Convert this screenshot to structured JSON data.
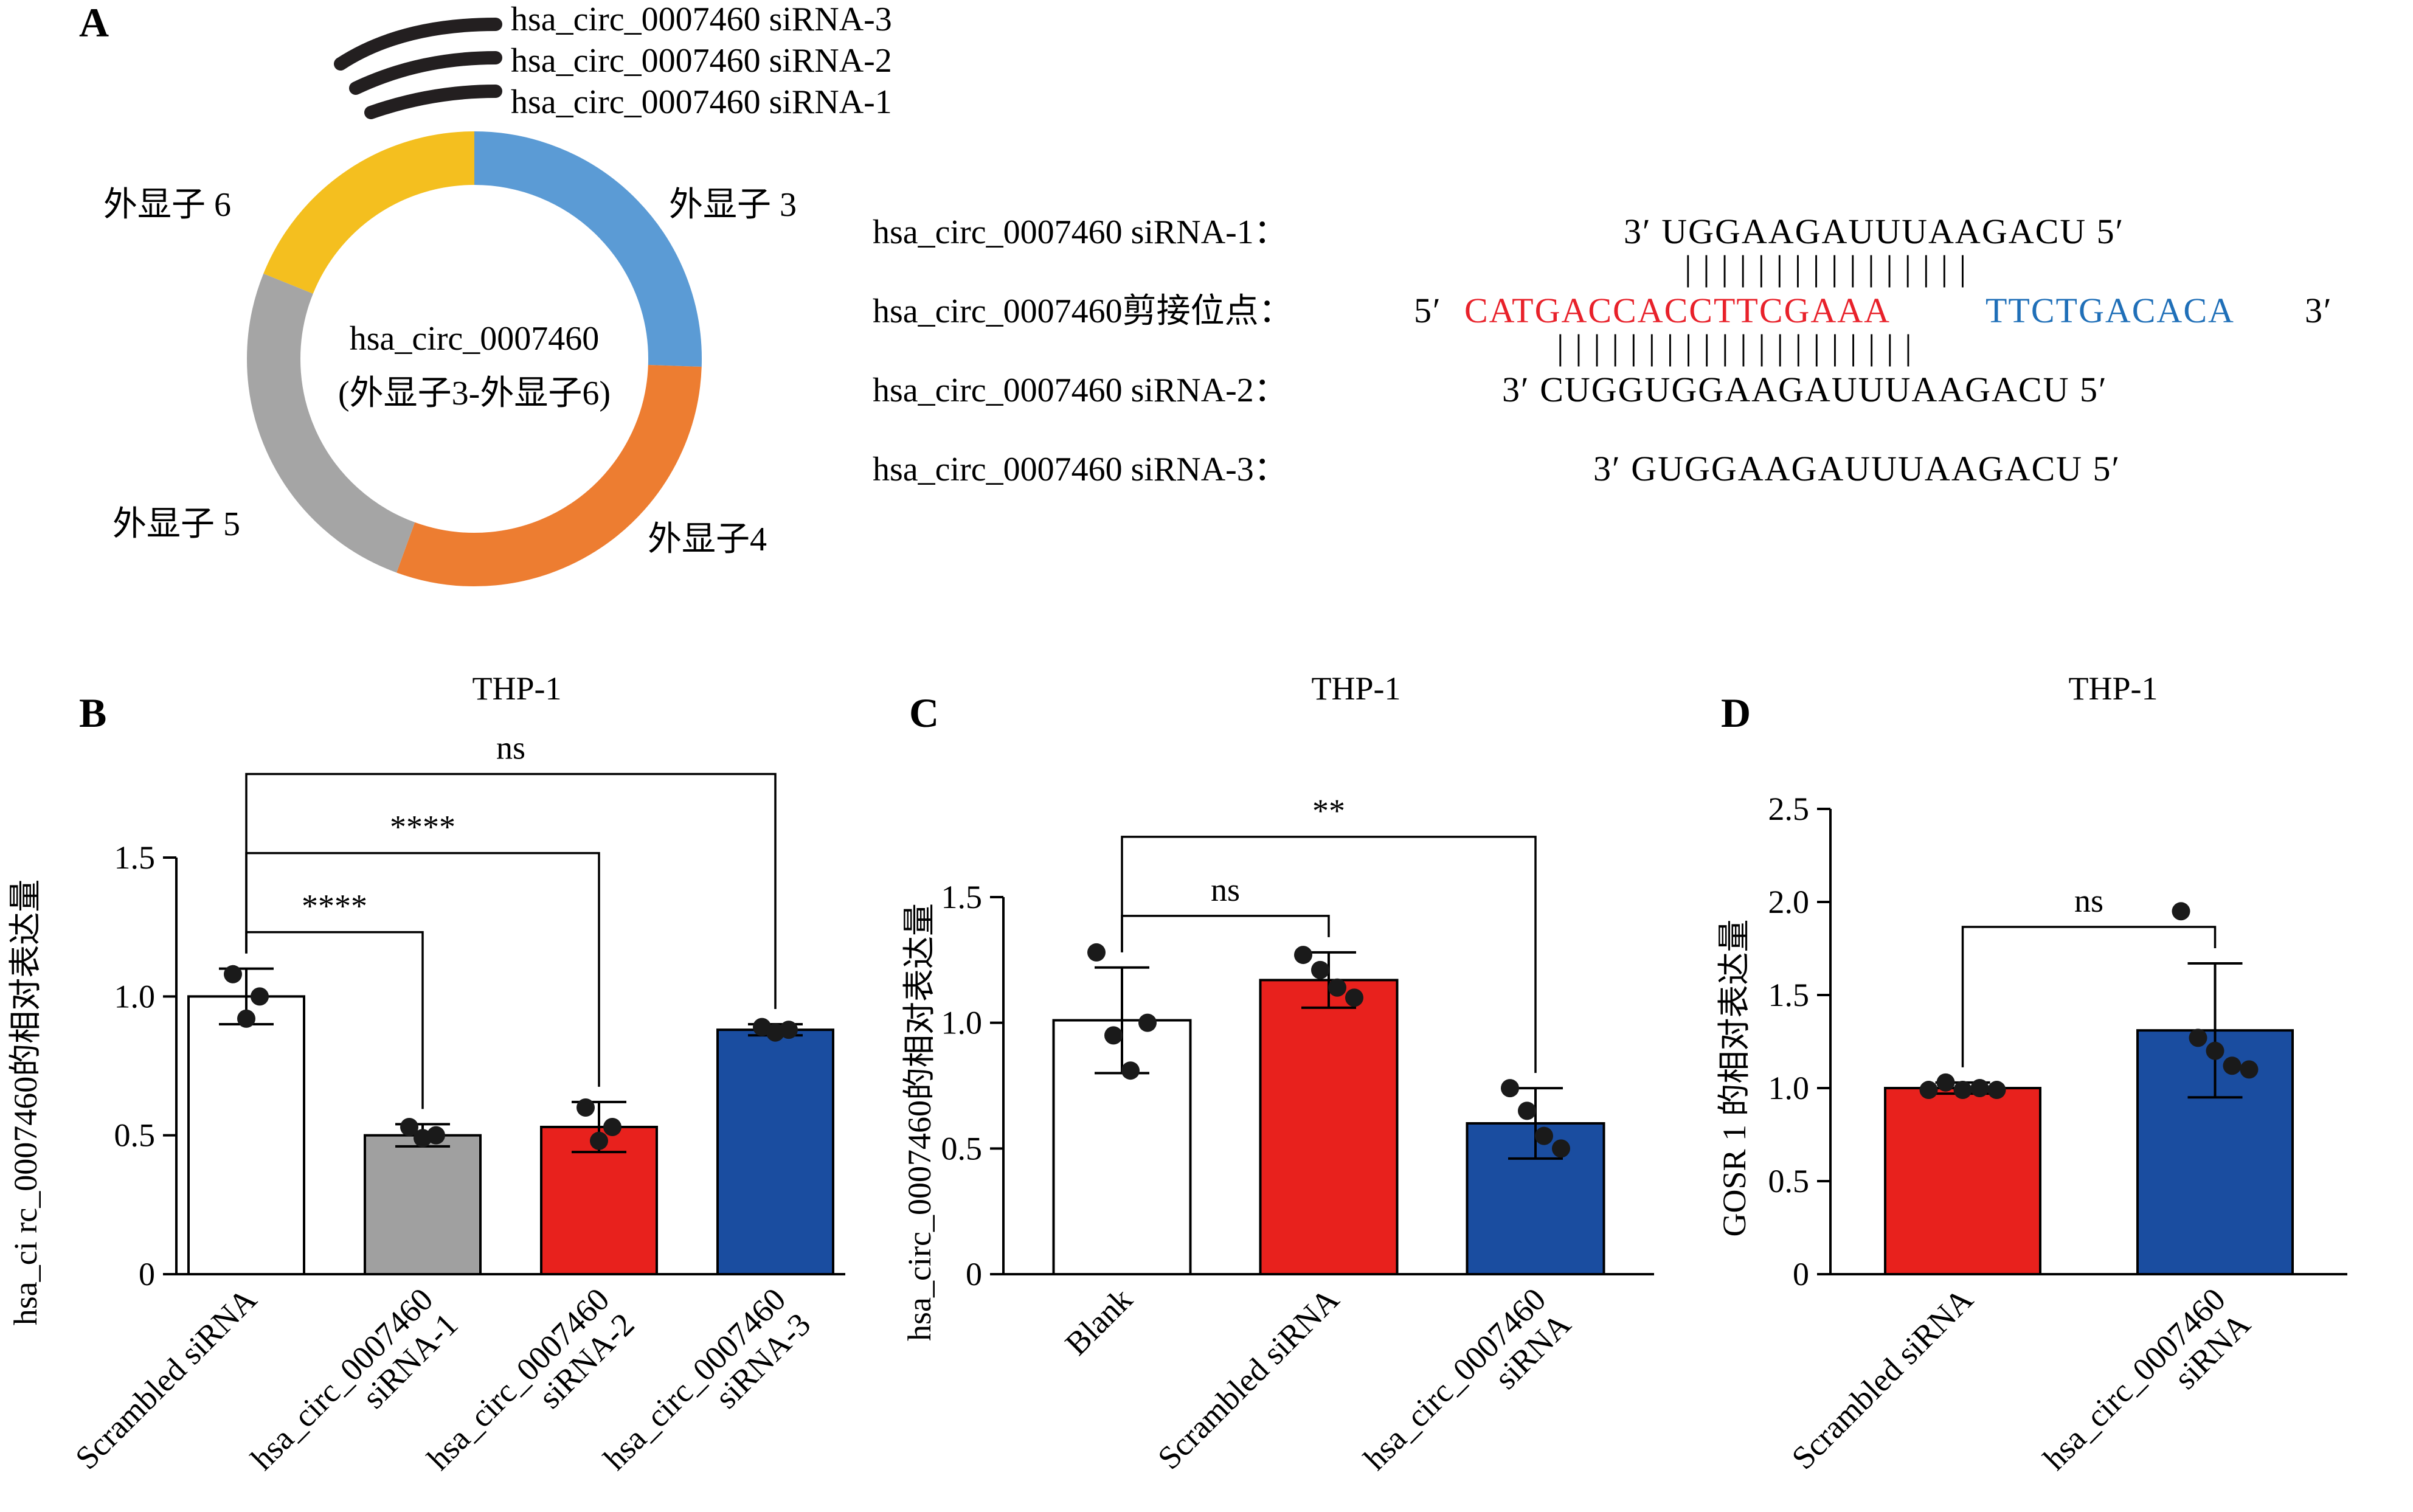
{
  "panel_a": {
    "label": "A",
    "center_line1": "hsa_circ_0007460",
    "center_line2": "(外显子3-外显子6)",
    "exons": [
      {
        "label": "外显子 3",
        "color": "#5b9bd5"
      },
      {
        "label": "外显子4",
        "color": "#ed7d31"
      },
      {
        "label": "外显子 5",
        "color": "#a5a5a5"
      },
      {
        "label": "外显子 6",
        "color": "#f4bf1f"
      }
    ],
    "sirna_arcs": [
      "hsa_circ_0007460 siRNA-3",
      "hsa_circ_0007460 siRNA-2",
      "hsa_circ_0007460 siRNA-1"
    ],
    "sequences": {
      "sirna1_label": "hsa_circ_0007460 siRNA-1：",
      "sirna1_seq": "3′ UGGAAGAUUUAAGACU 5′",
      "site_label": "hsa_circ_0007460剪接位点：",
      "site_prefix": "5′",
      "site_red": "CATGACCACCTTCGAAA",
      "site_blue": "TTCTGACACA",
      "site_suffix": "3′",
      "sirna2_label": "hsa_circ_0007460 siRNA-2：",
      "sirna2_seq": "3′ CUGGUGGAAGAUUUAAGACU 5′",
      "sirna3_label": "hsa_circ_0007460 siRNA-3：",
      "sirna3_seq": "3′ GUGGAAGAUUUAAGACU 5′",
      "pair_marks_top": "| | | | | | | | | | | | | | | |",
      "pair_marks_bottom": "| | | | | | | | | | | | | | | | | | | |"
    },
    "colors": {
      "red": "#e8212a",
      "blue": "#1f6fb8"
    }
  },
  "chart_data": [
    {
      "panel": "B",
      "type": "bar",
      "title": "THP-1",
      "ylabel": "hsa_ci rc_0007460的相对表达量",
      "ylim": [
        0,
        1.5
      ],
      "yticks": [
        "0",
        "0.5",
        "1.0",
        "1.5"
      ],
      "categories": [
        [
          "Scrambled siRNA"
        ],
        [
          "hsa_circ_0007460",
          "siRNA-1"
        ],
        [
          "hsa_circ_0007460",
          "siRNA-2"
        ],
        [
          "hsa_circ_0007460",
          "siRNA-3"
        ]
      ],
      "values": [
        1.0,
        0.5,
        0.53,
        0.88
      ],
      "errors": [
        0.1,
        0.04,
        0.09,
        0.02
      ],
      "points": [
        [
          1.08,
          0.92,
          1.0
        ],
        [
          0.53,
          0.49,
          0.5
        ],
        [
          0.6,
          0.48,
          0.53
        ],
        [
          0.89,
          0.87,
          0.88
        ]
      ],
      "colors": [
        "#ffffff",
        "#a0a0a0",
        "#e8211d",
        "#1a4da0"
      ],
      "comparisons": [
        {
          "from": 0,
          "to": 1,
          "label": "****"
        },
        {
          "from": 0,
          "to": 2,
          "label": "****"
        },
        {
          "from": 0,
          "to": 3,
          "label": "ns"
        }
      ]
    },
    {
      "panel": "C",
      "type": "bar",
      "title": "THP-1",
      "ylabel": "hsa_circ_0007460的相对表达量",
      "ylim": [
        0,
        1.5
      ],
      "yticks": [
        "0",
        "0.5",
        "1.0",
        "1.5"
      ],
      "categories": [
        [
          "Blank"
        ],
        [
          "Scrambled siRNA"
        ],
        [
          "hsa_circ_0007460",
          "siRNA"
        ]
      ],
      "values": [
        1.01,
        1.17,
        0.6
      ],
      "errors": [
        0.21,
        0.11,
        0.14
      ],
      "points": [
        [
          1.28,
          0.95,
          0.81,
          1.0
        ],
        [
          1.27,
          1.21,
          1.14,
          1.1
        ],
        [
          0.74,
          0.65,
          0.55,
          0.5
        ]
      ],
      "colors": [
        "#ffffff",
        "#e8211d",
        "#1a4da0"
      ],
      "comparisons": [
        {
          "from": 0,
          "to": 1,
          "label": "ns"
        },
        {
          "from": 0,
          "to": 2,
          "label": "**"
        }
      ]
    },
    {
      "panel": "D",
      "type": "bar",
      "title": "THP-1",
      "ylabel": "GOSR 1 的相对表达量",
      "ylim": [
        0,
        2.5
      ],
      "yticks": [
        "0",
        "0.5",
        "1.0",
        "1.5",
        "2.0",
        "2.5"
      ],
      "categories": [
        [
          "Scrambled siRNA"
        ],
        [
          "hsa_circ_0007460",
          "siRNA"
        ]
      ],
      "values": [
        1.0,
        1.31
      ],
      "errors": [
        0.03,
        0.36
      ],
      "points": [
        [
          0.99,
          1.03,
          0.99,
          1.0,
          0.99
        ],
        [
          1.95,
          1.27,
          1.2,
          1.12,
          1.1
        ]
      ],
      "colors": [
        "#e8211d",
        "#1a4da0"
      ],
      "comparisons": [
        {
          "from": 0,
          "to": 1,
          "label": "ns"
        }
      ]
    }
  ]
}
